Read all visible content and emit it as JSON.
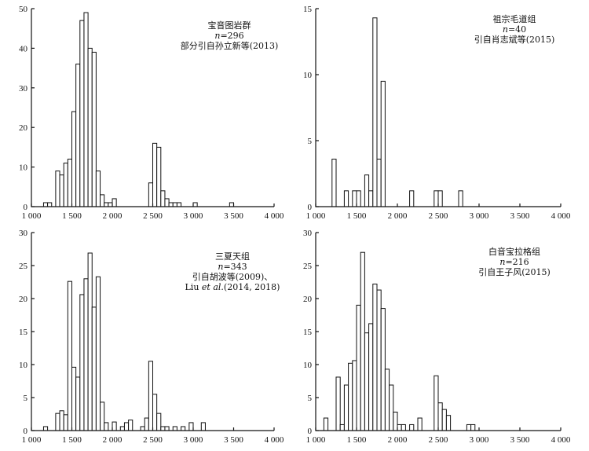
{
  "chart_data": [
    {
      "type": "bar",
      "xlim": [
        1000,
        4000
      ],
      "ylim": [
        0,
        50
      ],
      "yticks": [
        0,
        10,
        20,
        30,
        40,
        50
      ],
      "xticks": [
        1000,
        1500,
        2000,
        2500,
        3000,
        3500,
        4000
      ],
      "xtick_labels": [
        "1 000",
        "1 500",
        "2 000",
        "2 500",
        "3 000",
        "3 500",
        "4 000"
      ],
      "bin_width": 50,
      "x": [
        1150,
        1200,
        1300,
        1350,
        1400,
        1450,
        1500,
        1550,
        1600,
        1650,
        1700,
        1750,
        1800,
        1850,
        1900,
        1950,
        2000,
        2050,
        2100,
        2450,
        2500,
        2550,
        2600,
        2650,
        2700,
        2750,
        2800,
        2850,
        2900,
        3000,
        3450
      ],
      "values": [
        1,
        1,
        9,
        8,
        11,
        12,
        24,
        36,
        47,
        49,
        40,
        39,
        9,
        3,
        1,
        1,
        2,
        0,
        0,
        6,
        16,
        15,
        4,
        2,
        1,
        1,
        1,
        0,
        0,
        1,
        1
      ],
      "annotation": [
        "宝音图岩群",
        "n=296",
        "部分引自孙立新等(2013)"
      ]
    },
    {
      "type": "bar",
      "xlim": [
        1000,
        4000
      ],
      "ylim": [
        0,
        15
      ],
      "yticks": [
        0,
        5,
        10,
        15
      ],
      "xticks": [
        1000,
        1500,
        2000,
        2500,
        3000,
        3500,
        4000
      ],
      "xtick_labels": [
        "1 000",
        "1 500",
        "2 000",
        "2 500",
        "3 000",
        "3 500",
        "4 000"
      ],
      "bin_width": 50,
      "x": [
        1200,
        1350,
        1450,
        1500,
        1600,
        1650,
        1700,
        1750,
        1800,
        2150,
        2450,
        2500,
        2750
      ],
      "values": [
        3.6,
        1.2,
        1.2,
        1.2,
        2.4,
        1.2,
        14.3,
        3.6,
        9.5,
        1.2,
        1.2,
        1.2,
        1.2
      ],
      "annotation": [
        "祖宗毛道组",
        "n=40",
        "引自肖志斌等(2015)"
      ]
    },
    {
      "type": "bar",
      "xlim": [
        1000,
        4000
      ],
      "ylim": [
        0,
        30
      ],
      "yticks": [
        0,
        5,
        10,
        15,
        20,
        25,
        30
      ],
      "xticks": [
        1000,
        1500,
        2000,
        2500,
        3000,
        3500,
        4000
      ],
      "xtick_labels": [
        "1 000",
        "1 500",
        "2 000",
        "2 500",
        "3 000",
        "3 500",
        "4 000"
      ],
      "bin_width": 50,
      "x": [
        1150,
        1300,
        1350,
        1400,
        1450,
        1500,
        1550,
        1600,
        1650,
        1700,
        1750,
        1800,
        1850,
        1900,
        2000,
        2100,
        2150,
        2200,
        2350,
        2400,
        2450,
        2500,
        2550,
        2600,
        2650,
        2750,
        2850,
        2950,
        3100
      ],
      "values": [
        0.6,
        2.6,
        3.0,
        2.4,
        22.6,
        9.6,
        8.1,
        20.6,
        23.0,
        26.9,
        18.7,
        23.3,
        4.3,
        1.2,
        1.3,
        0.6,
        1.2,
        1.6,
        0.6,
        1.9,
        10.5,
        5.5,
        2.6,
        0.6,
        0.6,
        0.6,
        0.6,
        1.2,
        1.2
      ],
      "annotation": [
        "三夏天组",
        "n=343",
        "引自胡波等(2009)、",
        "Liu et al.(2014, 2018)"
      ]
    },
    {
      "type": "bar",
      "xlim": [
        1000,
        4000
      ],
      "ylim": [
        0,
        30
      ],
      "yticks": [
        0,
        5,
        10,
        15,
        20,
        25,
        30
      ],
      "xticks": [
        1000,
        1500,
        2000,
        2500,
        3000,
        3500,
        4000
      ],
      "xtick_labels": [
        "1 000",
        "1 500",
        "2 000",
        "2 500",
        "3 000",
        "3 500",
        "4 000"
      ],
      "bin_width": 50,
      "x": [
        1100,
        1250,
        1300,
        1350,
        1400,
        1450,
        1500,
        1550,
        1600,
        1650,
        1700,
        1750,
        1800,
        1850,
        1900,
        1950,
        2000,
        2050,
        2150,
        2250,
        2450,
        2500,
        2550,
        2600,
        2850,
        2900
      ],
      "values": [
        1.9,
        8.1,
        0.9,
        6.9,
        10.2,
        10.6,
        19.0,
        27.0,
        14.8,
        16.2,
        22.2,
        21.3,
        18.5,
        9.3,
        6.9,
        2.8,
        0.9,
        0.9,
        0.9,
        1.9,
        8.3,
        4.2,
        3.2,
        2.3,
        0.9,
        0.9
      ],
      "annotation": [
        "白音宝拉格组",
        "n=216",
        "引自王子风(2015)"
      ]
    }
  ]
}
